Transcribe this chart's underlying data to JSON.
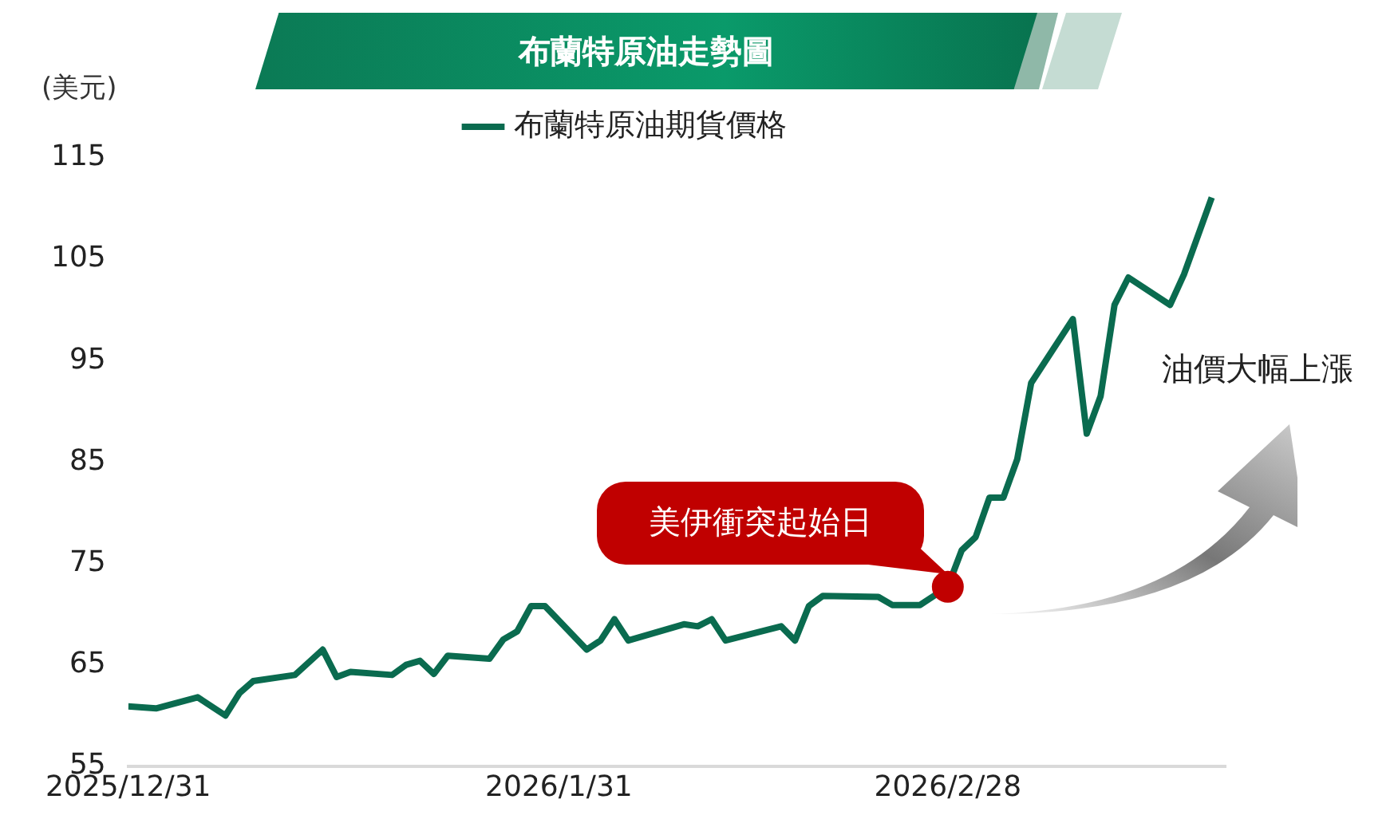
{
  "chart_data": {
    "type": "line",
    "title": "布蘭特原油走勢圖",
    "ylabel": "(美元)",
    "legend": "top",
    "x": [
      "2025-12-31",
      "2026-01-02",
      "2026-01-05",
      "2026-01-07",
      "2026-01-08",
      "2026-01-09",
      "2026-01-12",
      "2026-01-14",
      "2026-01-15",
      "2026-01-16",
      "2026-01-19",
      "2026-01-20",
      "2026-01-21",
      "2026-01-22",
      "2026-01-23",
      "2026-01-26",
      "2026-01-27",
      "2026-01-28",
      "2026-01-29",
      "2026-01-30",
      "2026-02-02",
      "2026-02-03",
      "2026-02-04",
      "2026-02-05",
      "2026-02-09",
      "2026-02-10",
      "2026-02-11",
      "2026-02-12",
      "2026-02-16",
      "2026-02-17",
      "2026-02-18",
      "2026-02-19",
      "2026-02-23",
      "2026-02-24",
      "2026-02-26",
      "2026-02-28",
      "2026-03-01",
      "2026-03-02",
      "2026-03-03",
      "2026-03-04",
      "2026-03-05",
      "2026-03-06",
      "2026-03-09",
      "2026-03-10",
      "2026-03-11",
      "2026-03-12",
      "2026-03-13",
      "2026-03-16",
      "2026-03-17",
      "2026-03-19"
    ],
    "series": [
      {
        "name": "布蘭特原油期貨價格",
        "color": "#0a6b4f",
        "values": [
          60.9,
          60.7,
          61.8,
          60.0,
          62.2,
          63.4,
          64.0,
          66.5,
          63.8,
          64.3,
          64.0,
          65.0,
          65.4,
          64.1,
          65.9,
          65.6,
          67.5,
          68.3,
          70.8,
          70.8,
          66.5,
          67.4,
          69.5,
          67.4,
          69.0,
          68.8,
          69.5,
          67.4,
          68.8,
          67.4,
          70.8,
          71.8,
          71.7,
          70.9,
          70.9,
          72.7,
          76.3,
          77.6,
          81.5,
          81.5,
          85.3,
          92.8,
          99.1,
          87.8,
          91.5,
          100.5,
          103.2,
          100.5,
          103.5,
          111.1
        ]
      }
    ],
    "xlim": [
      "2025-12-31",
      "2026-03-20"
    ],
    "xticks": [
      {
        "value": "2025-12-31",
        "label": "2025/12/31"
      },
      {
        "value": "2026-01-31",
        "label": "2026/1/31"
      },
      {
        "value": "2026-02-28",
        "label": "2026/2/28"
      }
    ],
    "ylim": [
      55,
      115
    ],
    "yticks": [
      55,
      65,
      75,
      85,
      95,
      105,
      115
    ],
    "annotations": [
      {
        "text": "美伊衝突起始日",
        "x": "2026-02-28",
        "y": 72.7
      },
      "油價大幅上漲"
    ]
  }
}
